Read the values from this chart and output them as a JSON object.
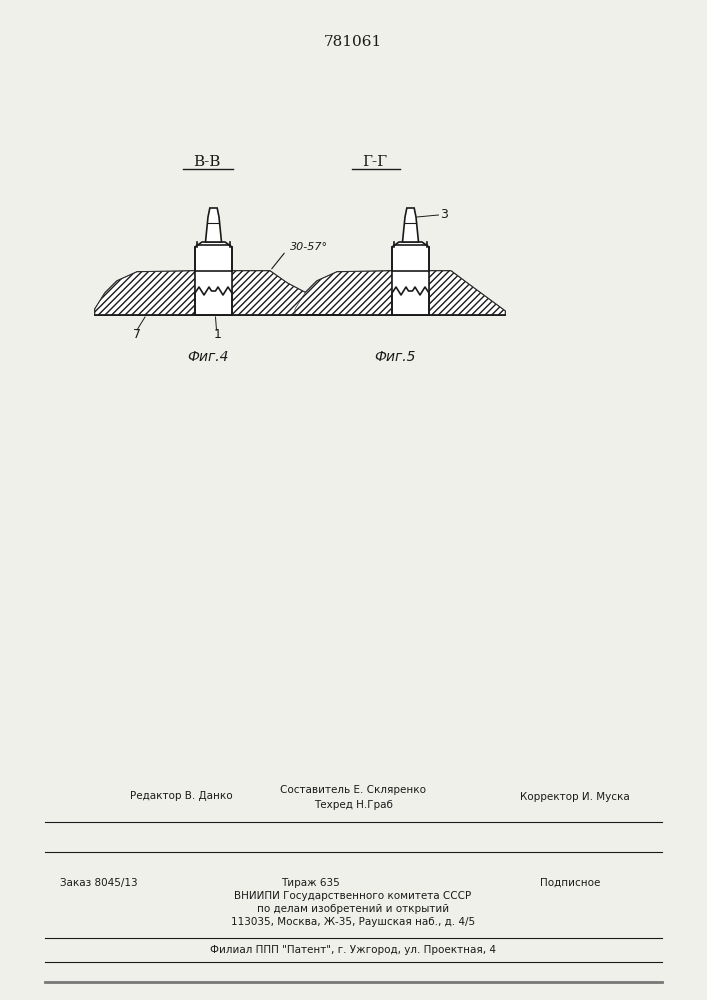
{
  "patent_number": "781061",
  "fig4_label": "В-В",
  "fig5_label": "Г-Г",
  "fig4_caption": "Фиг.4",
  "fig5_caption": "Фиг.5",
  "angle_label": "30-57°",
  "label_1": "1",
  "label_7": "7",
  "label_3": "3",
  "footer_line1_left": "Редактор В. Данко",
  "footer_line1_center": "Составитель Е. Скляренко",
  "footer_line1_right": "Корректор И. Муска",
  "footer_line2_center": "Техред Н.Граб",
  "footer_box_line1": "Заказ 8045/13",
  "footer_box_line2": "Тираж 635",
  "footer_box_line3": "Подписное",
  "footer_box_line4": "ВНИИПИ Государственного комитета СССР",
  "footer_box_line5": "по делам изобретений и открытий",
  "footer_box_line6": "113035, Москва, Ж-35, Раушская наб., д. 4/5",
  "footer_bottom": "Филиал ППП \"Патент\", г. Ужгород, ул. Проектная, 4",
  "bg_color": "#f0f0eb",
  "line_color": "#1a1a1a"
}
